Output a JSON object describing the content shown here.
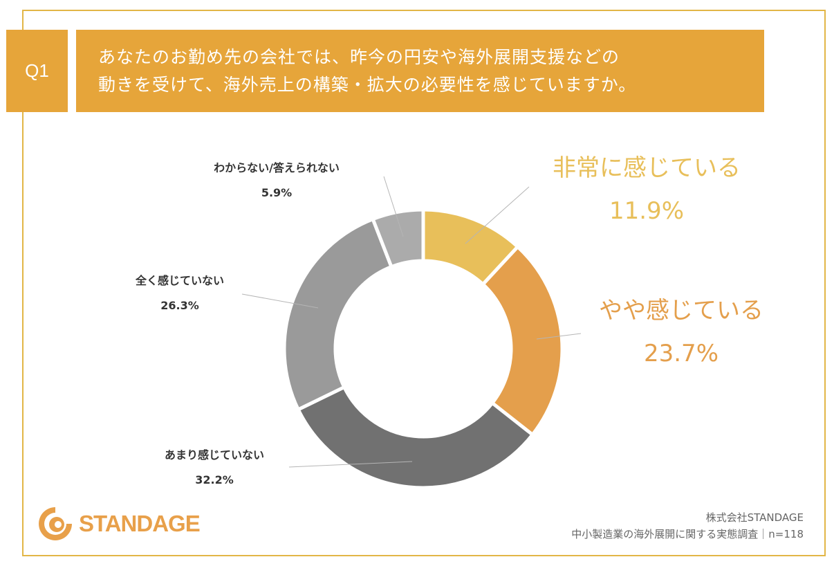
{
  "header": {
    "question_no": "Q1",
    "title_lines": [
      "あなたのお勤め先の会社では、昨今の円安や海外展開支援などの",
      "動きを受けて、海外売上の構築・拡大の必要性を感じていますか。"
    ]
  },
  "chart_data": {
    "type": "pie",
    "donut": true,
    "start": "top",
    "direction": "clockwise",
    "title": "あなたのお勤め先の会社では、昨今の円安や海外展開支援などの動きを受けて、海外売上の構築・拡大の必要性を感じていますか。",
    "series": [
      {
        "name": "非常に感じている",
        "value": 11.9,
        "label": "11.9%",
        "color": "#E8BF5A"
      },
      {
        "name": "やや感じている",
        "value": 23.7,
        "label": "23.7%",
        "color": "#E49F4C"
      },
      {
        "name": "あまり感じていない",
        "value": 32.2,
        "label": "32.2%",
        "color": "#717171"
      },
      {
        "name": "全く感じていない",
        "value": 26.3,
        "label": "26.3%",
        "color": "#9A9A9A"
      },
      {
        "name": "わからない/答えられない",
        "value": 5.9,
        "label": "5.9%",
        "color": "#ABABAB"
      }
    ]
  },
  "logo": {
    "text": "STANDAGE",
    "color": "#E8A04A"
  },
  "footer": {
    "company": "株式会社STANDAGE",
    "survey": "中小製造業の海外展開に関する実態調査｜n=118"
  }
}
